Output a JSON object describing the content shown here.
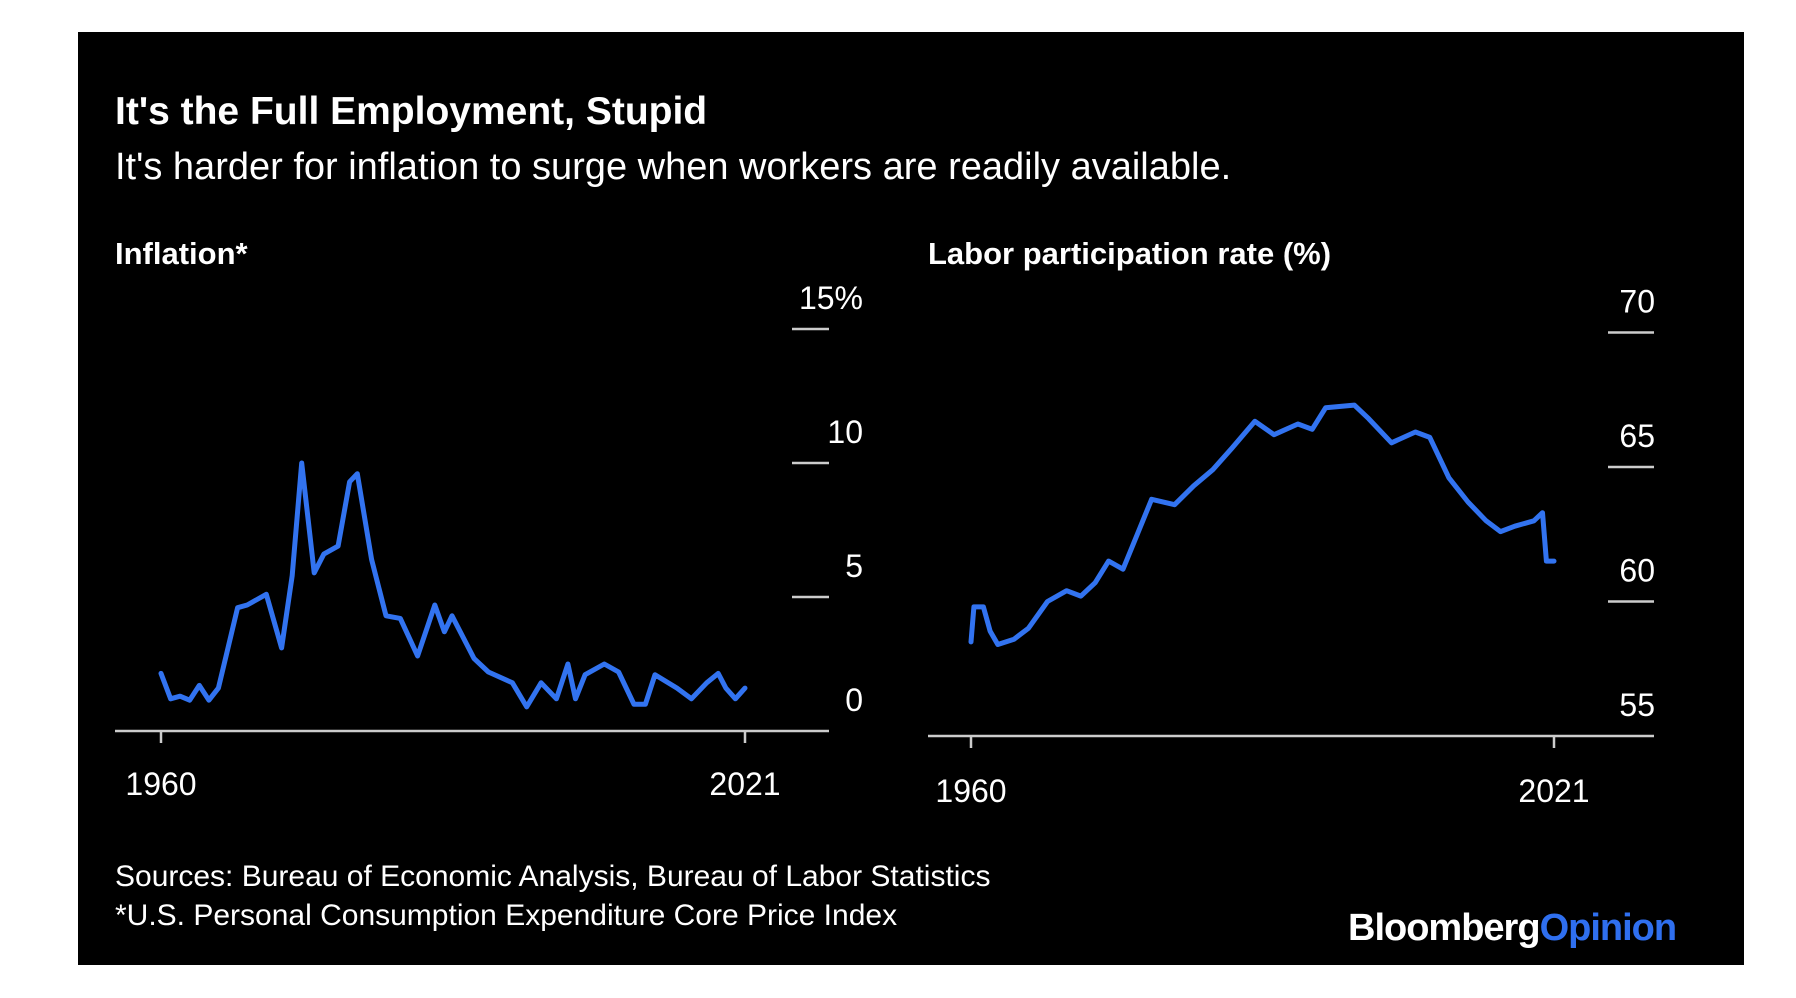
{
  "title": "It's the Full Employment, Stupid",
  "subtitle": "It's harder for inflation to surge when workers are readily available.",
  "sources": "Sources: Bureau of Economic Analysis, Bureau of Labor Statistics",
  "footnote": "*U.S. Personal Consumption Expenditure Core Price Index",
  "logo": {
    "part1": "Bloomberg",
    "part2": "Opinion",
    "color1": "#ffffff",
    "color2": "#2f6fef"
  },
  "colors": {
    "background": "#000000",
    "line": "#3273f0",
    "text": "#ffffff"
  },
  "chart_data": [
    {
      "type": "line",
      "title": "Inflation*",
      "xlim": [
        1960,
        2021
      ],
      "ylim": [
        0,
        15
      ],
      "x_tick_labels": [
        "1960",
        "2021"
      ],
      "y_tick_labels": [
        "0",
        "5",
        "10",
        "15%"
      ],
      "y_ticks": [
        0,
        5,
        10,
        15
      ],
      "grid": false,
      "x": [
        1960,
        1961,
        1962,
        1963,
        1964,
        1965,
        1966,
        1967,
        1968,
        1969,
        1971,
        1972.6,
        1973.7,
        1974.7,
        1976,
        1977,
        1978.5,
        1979.7,
        1980.5,
        1982,
        1983.5,
        1985,
        1986.8,
        1988.6,
        1989.6,
        1990.4,
        1992.7,
        1994.2,
        1996.7,
        1998.2,
        1999.7,
        2001.3,
        2002.5,
        2003.3,
        2004.3,
        2006.3,
        2007.8,
        2009.4,
        2010.6,
        2011.6,
        2013.9,
        2015.4,
        2017,
        2018.2,
        2019,
        2020,
        2021
      ],
      "y": [
        2.15,
        1.2,
        1.3,
        1.15,
        1.7,
        1.15,
        1.6,
        3.1,
        4.6,
        4.7,
        5.1,
        3.1,
        5.8,
        10.0,
        5.9,
        6.6,
        6.9,
        9.3,
        9.6,
        6.4,
        4.3,
        4.2,
        2.8,
        4.7,
        3.7,
        4.3,
        2.7,
        2.2,
        1.8,
        0.9,
        1.8,
        1.2,
        2.5,
        1.2,
        2.1,
        2.5,
        2.2,
        1.0,
        1.0,
        2.1,
        1.6,
        1.2,
        1.8,
        2.15,
        1.6,
        1.2,
        1.6
      ]
    },
    {
      "type": "line",
      "title": "Labor participation rate (%)",
      "xlim": [
        1960,
        2021
      ],
      "ylim": [
        55,
        70
      ],
      "x_tick_labels": [
        "1960",
        "2021"
      ],
      "y_tick_labels": [
        "55",
        "60",
        "65",
        "70"
      ],
      "y_ticks": [
        55,
        60,
        65,
        70
      ],
      "grid": false,
      "x": [
        1960,
        1960.3,
        1961.3,
        1962,
        1962.8,
        1964.5,
        1966,
        1968,
        1970,
        1971.5,
        1973,
        1974.4,
        1975.9,
        1977.4,
        1978.9,
        1981.3,
        1983.3,
        1985.3,
        1987.3,
        1989.7,
        1991.7,
        1994.2,
        1995.7,
        1997.1,
        2000.1,
        2001.6,
        2004,
        2006.5,
        2008,
        2010,
        2012,
        2013.9,
        2015.4,
        2016.9,
        2018.9,
        2019.8,
        2020.2,
        2020.6,
        2021
      ],
      "y": [
        58.5,
        59.8,
        59.8,
        58.9,
        58.4,
        58.6,
        59.0,
        60.0,
        60.4,
        60.2,
        60.7,
        61.5,
        61.2,
        62.5,
        63.8,
        63.6,
        64.3,
        64.9,
        65.7,
        66.7,
        66.2,
        66.6,
        66.4,
        67.2,
        67.3,
        66.8,
        65.9,
        66.3,
        66.1,
        64.6,
        63.7,
        63.0,
        62.6,
        62.8,
        63.0,
        63.3,
        61.5,
        61.5,
        61.5
      ]
    }
  ]
}
